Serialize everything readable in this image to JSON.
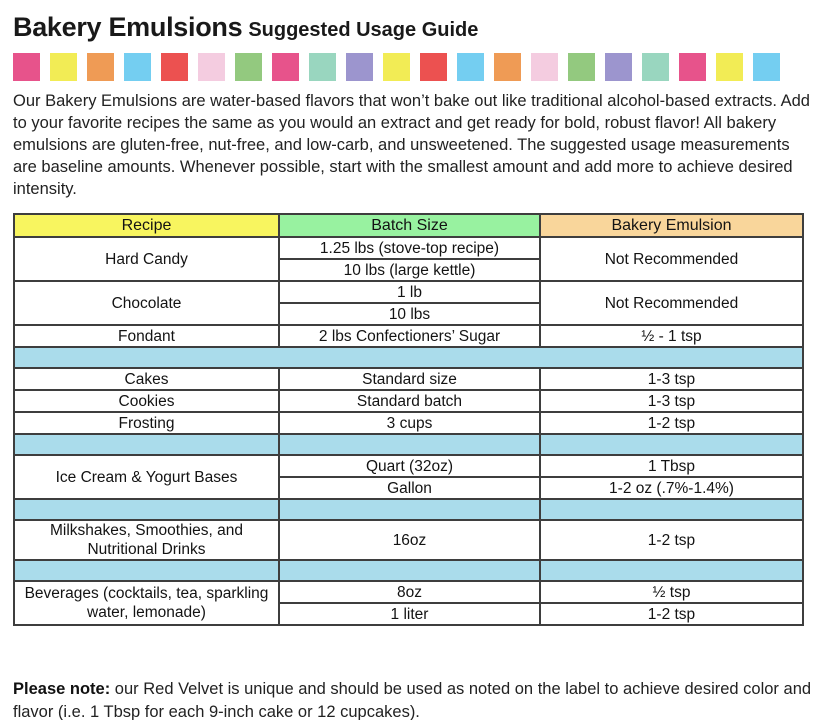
{
  "title": {
    "main": "Bakery Emulsions",
    "sub": "Suggested Usage Guide"
  },
  "stripe": {
    "colors": [
      "#E7538B",
      "#F2EC55",
      "#EF9B55",
      "#74CEF1",
      "#EC5150",
      "#F4CCE0",
      "#93C97F",
      "#E7538B",
      "#99D6BF",
      "#9C95CE",
      "#F2EC55",
      "#EC5150",
      "#74CEF1",
      "#EF9B55",
      "#F4CCE0",
      "#93C97F",
      "#9C95CE",
      "#99D6BF",
      "#E7538B",
      "#F2EC55",
      "#74CEF1"
    ]
  },
  "intro": "Our Bakery Emulsions are water-based flavors that won’t bake out like traditional alcohol-based extracts. Add to your favorite recipes the same as you would an extract and get ready for bold, robust flavor! All bakery emulsions are gluten-free, nut-free, and low-carb, and unsweetened. The suggested usage measurements are baseline amounts. Whenever possible, start with the smallest amount and add more to achieve desired intensity.",
  "table": {
    "header_colors": {
      "recipe": "#F8F55F",
      "batch": "#98F2A0",
      "emulsion": "#F9D69B"
    },
    "separator_color": "#AADCEB",
    "headers": {
      "recipe": "Recipe",
      "batch": "Batch Size",
      "emulsion": "Bakery Emulsion"
    },
    "rows": {
      "hard_candy": {
        "recipe": "Hard Candy",
        "batch1": "1.25 lbs (stove-top recipe)",
        "batch2": "10 lbs (large kettle)",
        "emulsion": "Not Recommended"
      },
      "chocolate": {
        "recipe": "Chocolate",
        "batch1": "1 lb",
        "batch2": "10 lbs",
        "emulsion": "Not Recommended"
      },
      "fondant": {
        "recipe": "Fondant",
        "batch": "2 lbs Confectioners’ Sugar",
        "emulsion": "½ - 1 tsp"
      },
      "cakes": {
        "recipe": "Cakes",
        "batch": "Standard size",
        "emulsion": "1-3 tsp"
      },
      "cookies": {
        "recipe": "Cookies",
        "batch": "Standard batch",
        "emulsion": "1-3 tsp"
      },
      "frosting": {
        "recipe": "Frosting",
        "batch": "3 cups",
        "emulsion": "1-2 tsp"
      },
      "ice_cream": {
        "recipe": "Ice Cream & Yogurt Bases",
        "batch1": "Quart (32oz)",
        "emulsion1": "1 Tbsp",
        "batch2": "Gallon",
        "emulsion2": "1-2 oz (.7%-1.4%)"
      },
      "milkshakes": {
        "recipe": "Milkshakes, Smoothies, and Nutritional Drinks",
        "batch": "16oz",
        "emulsion": "1-2 tsp"
      },
      "beverages": {
        "recipe": "Beverages (cocktails, tea, sparkling water, lemonade)",
        "batch1": "8oz",
        "emulsion1": "½ tsp",
        "batch2": "1 liter",
        "emulsion2": "1-2 tsp"
      }
    }
  },
  "note": {
    "label": "Please note:",
    "text": " our Red Velvet is unique and should be used as noted on the label to achieve desired color and flavor (i.e. 1 Tbsp for each 9-inch cake or 12 cupcakes)."
  }
}
